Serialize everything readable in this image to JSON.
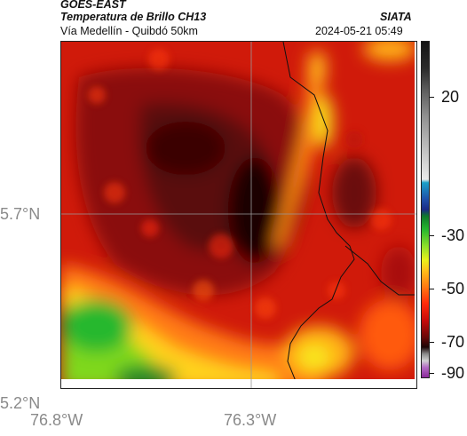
{
  "header": {
    "satellite": "GOES-EAST",
    "product": "Temperatura de Brillo CH13",
    "region": "Vía Medellín - Quibdó 50km",
    "agency": "SIATA",
    "datetime": "2024-05-21 05:49"
  },
  "axes": {
    "lat_labels": [
      "5.7°N",
      "5.2°N"
    ],
    "lon_labels": [
      "76.8°W",
      "76.3°W"
    ]
  },
  "colorbar": {
    "tick_labels": [
      "20",
      "-30",
      "-50",
      "-70",
      "-90"
    ]
  },
  "colors": {
    "background_field": "#d8170a",
    "cold_core": "#2a0606",
    "warm_edge": "#7bd41e"
  }
}
